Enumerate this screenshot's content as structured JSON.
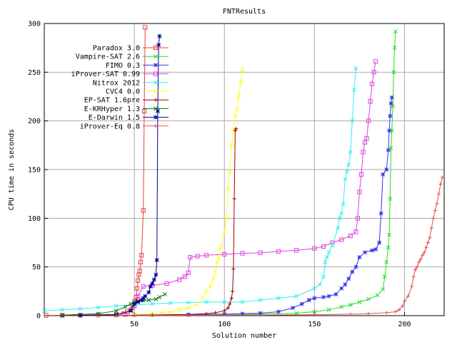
{
  "chart_data": {
    "type": "line",
    "title": "FNTResults",
    "xlabel": "Solution number",
    "ylabel": "CPU time in seconds",
    "xlim": [
      0,
      222
    ],
    "ylim": [
      0,
      300
    ],
    "xticks": [
      "50",
      "100",
      "150",
      "200"
    ],
    "yticks": [
      "0",
      "50",
      "100",
      "150",
      "200",
      "250",
      "300"
    ],
    "grid": true,
    "legend_position": "top-left",
    "series": [
      {
        "name": "Paradox 3.0",
        "color": "#e84040",
        "marker": "square",
        "points": [
          [
            1,
            0.3
          ],
          [
            10,
            0.4
          ],
          [
            20,
            0.6
          ],
          [
            30,
            0.9
          ],
          [
            40,
            1.3
          ],
          [
            44,
            2
          ],
          [
            46,
            4
          ],
          [
            48,
            6
          ],
          [
            49,
            8
          ],
          [
            50,
            10
          ],
          [
            50.5,
            15
          ],
          [
            51,
            19
          ],
          [
            51.5,
            28
          ],
          [
            52,
            36
          ],
          [
            52.5,
            42
          ],
          [
            53,
            46
          ],
          [
            53.5,
            55
          ],
          [
            54,
            62
          ],
          [
            55,
            108
          ],
          [
            55.5,
            210
          ],
          [
            56,
            296
          ]
        ]
      },
      {
        "name": "Vampire-SAT 2.6",
        "color": "#22dd22",
        "marker": "x",
        "points": [
          [
            10,
            0.1
          ],
          [
            40,
            0.3
          ],
          [
            60,
            0.6
          ],
          [
            80,
            0.9
          ],
          [
            100,
            1.2
          ],
          [
            120,
            1.5
          ],
          [
            140,
            2.5
          ],
          [
            150,
            4
          ],
          [
            158,
            6
          ],
          [
            165,
            9
          ],
          [
            170,
            11
          ],
          [
            175,
            14
          ],
          [
            180,
            17
          ],
          [
            185,
            21
          ],
          [
            188,
            27
          ],
          [
            189,
            40
          ],
          [
            190,
            55
          ],
          [
            191,
            70
          ],
          [
            191.5,
            83
          ],
          [
            192,
            120
          ],
          [
            192.5,
            172
          ],
          [
            193,
            190
          ],
          [
            193.5,
            215
          ],
          [
            194,
            250
          ],
          [
            194.5,
            275
          ],
          [
            195,
            292
          ]
        ]
      },
      {
        "name": "FIMO 0.3",
        "color": "#3333ee",
        "marker": "star",
        "points": [
          [
            10,
            0.1
          ],
          [
            50,
            0.5
          ],
          [
            80,
            1
          ],
          [
            100,
            1.5
          ],
          [
            110,
            2
          ],
          [
            120,
            2.5
          ],
          [
            130,
            4
          ],
          [
            138,
            8
          ],
          [
            143,
            12
          ],
          [
            147,
            16
          ],
          [
            150,
            18
          ],
          [
            155,
            19
          ],
          [
            158,
            20
          ],
          [
            162,
            22
          ],
          [
            165,
            28
          ],
          [
            167,
            32
          ],
          [
            169,
            38
          ],
          [
            171,
            45
          ],
          [
            173,
            50
          ],
          [
            175,
            60
          ],
          [
            178,
            65
          ],
          [
            182,
            67
          ],
          [
            184,
            68
          ],
          [
            186,
            75
          ],
          [
            187,
            105
          ],
          [
            188,
            145
          ],
          [
            190,
            150
          ],
          [
            191,
            170
          ],
          [
            191.5,
            190
          ],
          [
            192,
            205
          ],
          [
            192.5,
            218
          ],
          [
            193,
            224
          ]
        ]
      },
      {
        "name": "iProver-SAT 0.99",
        "color": "#e040e0",
        "marker": "square",
        "points": [
          [
            30,
            0.5
          ],
          [
            45,
            1
          ],
          [
            50,
            12
          ],
          [
            52,
            20
          ],
          [
            55,
            30
          ],
          [
            60,
            31
          ],
          [
            68,
            33
          ],
          [
            75,
            37
          ],
          [
            78,
            40
          ],
          [
            80,
            44
          ],
          [
            81,
            60
          ],
          [
            85,
            61
          ],
          [
            90,
            62
          ],
          [
            100,
            63
          ],
          [
            110,
            64
          ],
          [
            120,
            64.5
          ],
          [
            130,
            66
          ],
          [
            140,
            67
          ],
          [
            150,
            69
          ],
          [
            155,
            71
          ],
          [
            160,
            75
          ],
          [
            165,
            78
          ],
          [
            170,
            82
          ],
          [
            173,
            86
          ],
          [
            174,
            100
          ],
          [
            175,
            127
          ],
          [
            176,
            145
          ],
          [
            177,
            168
          ],
          [
            178,
            178
          ],
          [
            179,
            182
          ],
          [
            180,
            200
          ],
          [
            181,
            220
          ],
          [
            182,
            238
          ],
          [
            183,
            250
          ],
          [
            184,
            261
          ]
        ]
      },
      {
        "name": "Nitrox 2012",
        "color": "#33eeee",
        "marker": "x",
        "points": [
          [
            0,
            5
          ],
          [
            10,
            6
          ],
          [
            20,
            7
          ],
          [
            30,
            8.5
          ],
          [
            40,
            10
          ],
          [
            50,
            11
          ],
          [
            60,
            12
          ],
          [
            70,
            13
          ],
          [
            80,
            13.5
          ],
          [
            90,
            14
          ],
          [
            100,
            14
          ],
          [
            110,
            14
          ],
          [
            120,
            16
          ],
          [
            130,
            18
          ],
          [
            140,
            20
          ],
          [
            150,
            28
          ],
          [
            153,
            32
          ],
          [
            155,
            40
          ],
          [
            156,
            55
          ],
          [
            157,
            60
          ],
          [
            158,
            65
          ],
          [
            160,
            72
          ],
          [
            163,
            90
          ],
          [
            164,
            100
          ],
          [
            165,
            105
          ],
          [
            166,
            115
          ],
          [
            167,
            140
          ],
          [
            168,
            148
          ],
          [
            169,
            155
          ],
          [
            170,
            168
          ],
          [
            171,
            200
          ],
          [
            172,
            232
          ],
          [
            173,
            254
          ]
        ]
      },
      {
        "name": "CVC4 0.0",
        "color": "#ffff22",
        "marker": "x",
        "points": [
          [
            30,
            0.3
          ],
          [
            50,
            1
          ],
          [
            60,
            2
          ],
          [
            65,
            3
          ],
          [
            70,
            4
          ],
          [
            75,
            6
          ],
          [
            80,
            8
          ],
          [
            85,
            12
          ],
          [
            88,
            18
          ],
          [
            90,
            25
          ],
          [
            92,
            30
          ],
          [
            94,
            38
          ],
          [
            95,
            45
          ],
          [
            96,
            55
          ],
          [
            97,
            60
          ],
          [
            98,
            70
          ],
          [
            100,
            85
          ],
          [
            101,
            100
          ],
          [
            102,
            130
          ],
          [
            103,
            148
          ],
          [
            104,
            175
          ],
          [
            105,
            190
          ],
          [
            106,
            205
          ],
          [
            107,
            212
          ],
          [
            108,
            225
          ],
          [
            109,
            240
          ],
          [
            110,
            253
          ]
        ]
      },
      {
        "name": "EP-SAT 1.6pre",
        "color": "#a00000",
        "marker": "plus",
        "points": [
          [
            10,
            0.1
          ],
          [
            40,
            0.3
          ],
          [
            60,
            0.7
          ],
          [
            80,
            1.2
          ],
          [
            90,
            2
          ],
          [
            95,
            3
          ],
          [
            100,
            5
          ],
          [
            102,
            8
          ],
          [
            103,
            12
          ],
          [
            104,
            18
          ],
          [
            104.5,
            25
          ],
          [
            105,
            48
          ],
          [
            105.5,
            120
          ],
          [
            106,
            190
          ],
          [
            106.5,
            192
          ]
        ]
      },
      {
        "name": "E-KRHyper 1.3",
        "color": "#007a00",
        "marker": "x",
        "points": [
          [
            10,
            0.5
          ],
          [
            30,
            2
          ],
          [
            40,
            5
          ],
          [
            45,
            9
          ],
          [
            48,
            12
          ],
          [
            50,
            14
          ],
          [
            52,
            15
          ],
          [
            55,
            15.5
          ],
          [
            58,
            16
          ],
          [
            62,
            17
          ],
          [
            64,
            19
          ],
          [
            67,
            22
          ]
        ]
      },
      {
        "name": "E-Darwin 1.5",
        "color": "#000099",
        "marker": "star",
        "points": [
          [
            20,
            0.3
          ],
          [
            40,
            1
          ],
          [
            48,
            5
          ],
          [
            50,
            12
          ],
          [
            52,
            14
          ],
          [
            54,
            16
          ],
          [
            55,
            18
          ],
          [
            56,
            20
          ],
          [
            58,
            24
          ],
          [
            59,
            30
          ],
          [
            60,
            33
          ],
          [
            61,
            37
          ],
          [
            62,
            42
          ],
          [
            62.5,
            57
          ],
          [
            63,
            210
          ],
          [
            63.5,
            278
          ],
          [
            64,
            287
          ]
        ]
      },
      {
        "name": "iProver-Eq 0.8",
        "color": "#e85050",
        "marker": "plus",
        "points": [
          [
            40,
            0.1
          ],
          [
            80,
            0.3
          ],
          [
            120,
            0.6
          ],
          [
            150,
            1
          ],
          [
            170,
            1.5
          ],
          [
            180,
            2
          ],
          [
            190,
            3
          ],
          [
            195,
            4
          ],
          [
            197,
            6
          ],
          [
            199,
            10
          ],
          [
            200,
            15
          ],
          [
            202,
            20
          ],
          [
            204,
            30
          ],
          [
            205,
            40
          ],
          [
            206,
            47
          ],
          [
            207,
            50
          ],
          [
            208,
            55
          ],
          [
            209,
            58
          ],
          [
            210,
            62
          ],
          [
            211,
            65
          ],
          [
            212,
            70
          ],
          [
            213,
            75
          ],
          [
            214,
            80
          ],
          [
            215,
            90
          ],
          [
            216,
            100
          ],
          [
            217,
            108
          ],
          [
            218,
            115
          ],
          [
            219,
            125
          ],
          [
            220,
            135
          ],
          [
            221,
            142
          ]
        ]
      }
    ]
  }
}
